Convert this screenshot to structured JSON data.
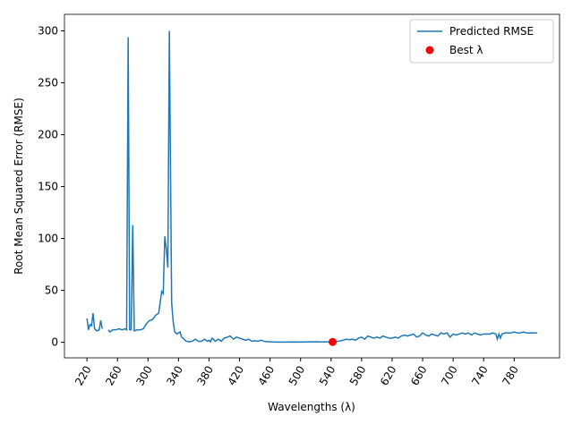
{
  "chart_data": {
    "type": "line",
    "xlabel": "Wavelengths (λ)",
    "ylabel": "Root Mean Squared Error (RMSE)",
    "xlim": [
      190.5,
      839.5
    ],
    "ylim": [
      -15,
      316
    ],
    "xticks": [
      220,
      260,
      300,
      340,
      380,
      420,
      460,
      500,
      540,
      580,
      620,
      660,
      700,
      740,
      780
    ],
    "yticks": [
      0,
      50,
      100,
      150,
      200,
      250,
      300
    ],
    "grid": false,
    "legend": "upper right",
    "series": [
      {
        "name": "Predicted RMSE",
        "color": "#1f77b4",
        "type": "line",
        "x": [
          220,
          222,
          224,
          226,
          228,
          230,
          233,
          236,
          238,
          240,
          244,
          248,
          250,
          254,
          258,
          262,
          266,
          270,
          272,
          274,
          276,
          278,
          280,
          282,
          286,
          290,
          294,
          298,
          302,
          306,
          310,
          314,
          318,
          320,
          322,
          324,
          326,
          328,
          331,
          333,
          335,
          338,
          342,
          344,
          346,
          350,
          354,
          358,
          362,
          366,
          370,
          374,
          378,
          380,
          382,
          384,
          386,
          388,
          392,
          396,
          400,
          404,
          408,
          412,
          416,
          420,
          424,
          428,
          432,
          436,
          440,
          444,
          448,
          452,
          456,
          460,
          464,
          470,
          480,
          490,
          500,
          510,
          520,
          530,
          540,
          550,
          556,
          560,
          564,
          568,
          572,
          576,
          580,
          584,
          588,
          592,
          596,
          600,
          604,
          608,
          612,
          616,
          620,
          624,
          628,
          632,
          636,
          640,
          644,
          648,
          652,
          656,
          660,
          664,
          668,
          672,
          676,
          680,
          684,
          688,
          692,
          696,
          700,
          704,
          708,
          712,
          716,
          720,
          724,
          728,
          732,
          736,
          740,
          744,
          748,
          752,
          756,
          758,
          760,
          762,
          764,
          768,
          772,
          776,
          780,
          784,
          788,
          792,
          796,
          800,
          804,
          810
        ],
        "values": [
          23,
          12,
          17,
          16,
          28,
          13,
          11,
          12,
          21,
          13,
          null,
          12,
          10,
          12,
          12,
          13,
          12,
          13,
          12,
          294,
          12,
          12,
          113,
          11,
          12,
          12,
          13,
          18,
          21,
          22,
          26,
          28,
          49,
          47,
          102,
          90,
          72,
          300,
          38,
          20,
          10,
          8,
          10,
          5,
          4,
          1,
          0.5,
          1,
          3,
          1,
          1,
          3,
          1,
          2,
          0.5,
          4,
          3,
          1,
          3,
          1,
          4,
          5,
          6,
          3,
          5,
          4,
          3,
          2,
          3,
          1,
          1.5,
          1,
          2,
          1,
          0.5,
          0.5,
          0.3,
          0.2,
          0.2,
          0.3,
          0.2,
          0.4,
          0.5,
          0.3,
          0.5,
          1,
          2,
          3,
          2.5,
          3,
          2,
          4,
          5,
          3,
          6,
          5,
          4,
          5,
          4,
          6,
          5,
          4,
          4,
          5,
          4,
          6,
          7,
          6,
          7,
          8,
          5,
          6,
          9,
          7,
          6,
          8,
          7,
          6,
          9,
          8,
          9,
          5,
          8,
          7,
          8,
          9,
          8,
          9,
          7,
          9,
          8,
          7,
          8,
          8,
          8,
          9,
          8,
          3,
          8,
          4,
          8,
          9,
          9,
          9,
          10,
          9,
          9,
          10,
          9,
          9,
          9,
          9
        ]
      },
      {
        "name": "Best λ",
        "color": "#ff0000",
        "type": "scatter",
        "x": [
          542
        ],
        "values": [
          0.3
        ]
      }
    ]
  }
}
